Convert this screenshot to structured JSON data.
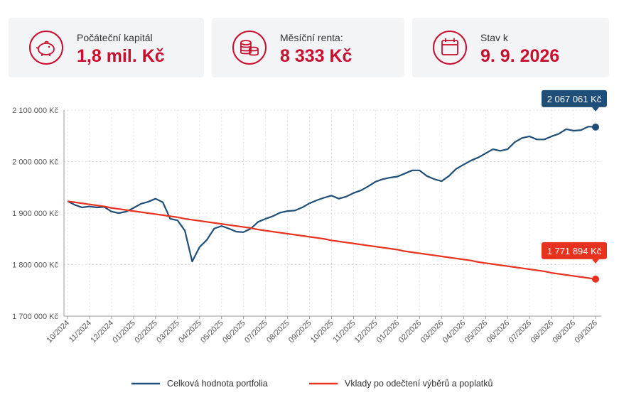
{
  "cards": [
    {
      "label": "Počáteční kapitál",
      "value": "1,8 mil. Kč"
    },
    {
      "label": "Měsíční renta:",
      "value": "8 333 Kč"
    },
    {
      "label": "Stav k",
      "value": "9. 9. 2026"
    }
  ],
  "chart_data": {
    "type": "line",
    "categories": [
      "10/2024",
      null,
      null,
      "11/2024",
      null,
      null,
      "12/2024",
      null,
      null,
      "01/2025",
      null,
      null,
      "02/2025",
      null,
      null,
      "03/2025",
      null,
      null,
      "04/2025",
      null,
      null,
      "05/2025",
      null,
      null,
      "06/2025",
      null,
      null,
      "07/2025",
      null,
      null,
      "08/2025",
      null,
      null,
      "09/2025",
      null,
      null,
      "10/2025",
      null,
      null,
      "11/2025",
      null,
      null,
      "12/2025",
      null,
      null,
      "01/2026",
      null,
      null,
      "02/2026",
      null,
      null,
      "03/2026",
      null,
      null,
      "04/2026",
      null,
      null,
      "05/2026",
      null,
      null,
      "06/2026",
      null,
      null,
      "07/2026",
      null,
      null,
      "08/2026",
      null,
      null,
      "08/2026",
      null,
      null,
      "09/2026"
    ],
    "series": [
      {
        "name": "Celková hodnota portfolia",
        "color": "#1f4e79",
        "values": [
          1923000,
          1916000,
          1911000,
          1913000,
          1911000,
          1912000,
          1903000,
          1900000,
          1903000,
          1910000,
          1918000,
          1922000,
          1928000,
          1921000,
          1889000,
          1886000,
          1866000,
          1806000,
          1834000,
          1848000,
          1870000,
          1875000,
          1870000,
          1864000,
          1863000,
          1870000,
          1883000,
          1889000,
          1894000,
          1901000,
          1904000,
          1905000,
          1911000,
          1919000,
          1925000,
          1930000,
          1934000,
          1928000,
          1932000,
          1939000,
          1944000,
          1952000,
          1961000,
          1966000,
          1969000,
          1971000,
          1977000,
          1983000,
          1983000,
          1972000,
          1966000,
          1962000,
          1972000,
          1986000,
          1994000,
          2002000,
          2008000,
          2016000,
          2024000,
          2021000,
          2024000,
          2038000,
          2046000,
          2049000,
          2043000,
          2043000,
          2049000,
          2054000,
          2063000,
          2060000,
          2061000,
          2068000,
          2067061
        ],
        "value_labels": [
          null,
          null,
          null,
          null,
          null,
          null,
          null,
          null,
          null,
          null,
          null,
          null,
          null,
          null,
          null,
          null,
          null,
          null,
          null,
          null,
          null,
          null,
          null,
          null,
          null,
          null,
          null,
          null,
          null,
          null,
          null,
          null,
          null,
          null,
          null,
          null,
          null,
          null,
          null,
          null,
          null,
          null,
          null,
          null,
          null,
          null,
          null,
          null,
          null,
          null,
          null,
          null,
          null,
          null,
          null,
          null,
          null,
          null,
          null,
          null,
          null,
          null,
          null,
          null,
          null,
          null,
          null,
          null,
          null,
          null,
          null,
          null,
          "2 067 061 Kč"
        ]
      },
      {
        "name": "Vklady po odečtení výběrů a poplatků",
        "color": "#e8321e",
        "values": [
          1923000,
          1921000,
          1919000,
          1917000,
          1915000,
          1913000,
          1910000,
          1908000,
          1906000,
          1904000,
          1902000,
          1900000,
          1898000,
          1896000,
          1894000,
          1892000,
          1889000,
          1887000,
          1885000,
          1883000,
          1881000,
          1879000,
          1877000,
          1875000,
          1873000,
          1871000,
          1868000,
          1866000,
          1864000,
          1862000,
          1860000,
          1858000,
          1856000,
          1854000,
          1852000,
          1850000,
          1847000,
          1845000,
          1843000,
          1841000,
          1839000,
          1837000,
          1835000,
          1833000,
          1831000,
          1829000,
          1826000,
          1824000,
          1822000,
          1820000,
          1818000,
          1816000,
          1814000,
          1812000,
          1810000,
          1808000,
          1805000,
          1803000,
          1801000,
          1799000,
          1797000,
          1795000,
          1793000,
          1791000,
          1789000,
          1787000,
          1784000,
          1782000,
          1780000,
          1778000,
          1776000,
          1774000,
          1771894
        ],
        "value_labels": [
          null,
          null,
          null,
          null,
          null,
          null,
          null,
          null,
          null,
          null,
          null,
          null,
          null,
          null,
          null,
          null,
          null,
          null,
          null,
          null,
          null,
          null,
          null,
          null,
          null,
          null,
          null,
          null,
          null,
          null,
          null,
          null,
          null,
          null,
          null,
          null,
          null,
          null,
          null,
          null,
          null,
          null,
          null,
          null,
          null,
          null,
          null,
          null,
          null,
          null,
          null,
          null,
          null,
          null,
          null,
          null,
          null,
          null,
          null,
          null,
          null,
          null,
          null,
          null,
          null,
          null,
          null,
          null,
          null,
          null,
          null,
          null,
          "1 771 894 Kč"
        ]
      }
    ],
    "ylim": [
      1700000,
      2100000
    ],
    "yticks": [
      {
        "value": 1700000,
        "label": "1 700 000 Kč"
      },
      {
        "value": 1800000,
        "label": "1 800 000 Kč"
      },
      {
        "value": 1900000,
        "label": "1 900 000 Kč"
      },
      {
        "value": 2000000,
        "label": "2 000 000 Kč"
      },
      {
        "value": 2100000,
        "label": "2 100 000 Kč"
      }
    ],
    "grid": true,
    "legend": "bottom"
  }
}
